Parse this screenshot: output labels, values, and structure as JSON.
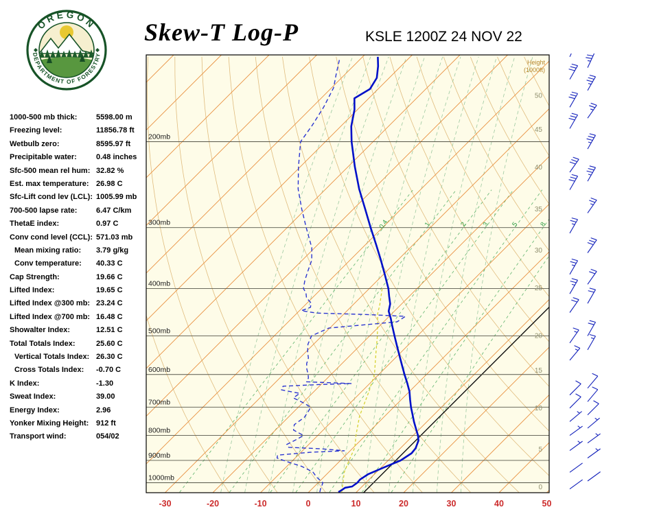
{
  "header": {
    "title": "Skew-T Log-P",
    "station_line": "KSLE 1200Z 24 NOV 22"
  },
  "logo": {
    "text_top": "OREGON",
    "text_bottom": "DEPARTMENT OF FORESTRY"
  },
  "stats": {
    "rows": [
      {
        "label": "1000-500 mb thick:",
        "value": "5598.00 m",
        "indent": false
      },
      {
        "label": "Freezing level:",
        "value": "11856.78 ft",
        "indent": false
      },
      {
        "label": "Wetbulb zero:",
        "value": "8595.97 ft",
        "indent": false
      },
      {
        "label": "Precipitable water:",
        "value": "0.48 inches",
        "indent": false
      },
      {
        "label": "Sfc-500 mean rel hum:",
        "value": "32.82 %",
        "indent": false
      },
      {
        "label": "Est. max temperature:",
        "value": "26.98 C",
        "indent": false
      },
      {
        "label": "Sfc-Lift cond lev (LCL):",
        "value": "1005.99 mb",
        "indent": false
      },
      {
        "label": "700-500 lapse rate:",
        "value": "6.47 C/km",
        "indent": false
      },
      {
        "label": "ThetaE index:",
        "value": "0.97 C",
        "indent": false
      },
      {
        "label": "Conv cond level (CCL):",
        "value": "571.03 mb",
        "indent": false
      },
      {
        "label": "Mean mixing ratio:",
        "value": "3.79 g/kg",
        "indent": true
      },
      {
        "label": "Conv temperature:",
        "value": "40.33 C",
        "indent": true
      },
      {
        "label": "Cap Strength:",
        "value": "19.66 C",
        "indent": false
      },
      {
        "label": "Lifted Index:",
        "value": "19.65 C",
        "indent": false
      },
      {
        "label": "Lifted Index @300 mb:",
        "value": "23.24 C",
        "indent": false
      },
      {
        "label": "Lifted Index @700 mb:",
        "value": "16.48 C",
        "indent": false
      },
      {
        "label": "Showalter Index:",
        "value": "12.51 C",
        "indent": false
      },
      {
        "label": "Total Totals Index:",
        "value": "25.60 C",
        "indent": false
      },
      {
        "label": "Vertical Totals Index:",
        "value": "26.30 C",
        "indent": true
      },
      {
        "label": "Cross Totals Index:",
        "value": "-0.70 C",
        "indent": true
      },
      {
        "label": "K Index:",
        "value": "-1.30",
        "indent": false
      },
      {
        "label": "Sweat Index:",
        "value": "39.00",
        "indent": false
      },
      {
        "label": "Energy Index:",
        "value": "2.96",
        "indent": false
      },
      {
        "label": "Yonker Mixing Height:",
        "value": "912 ft",
        "indent": false
      },
      {
        "label": "Transport wind:",
        "value": "054/02",
        "indent": false
      }
    ]
  },
  "chart_data": {
    "type": "skewt",
    "title": "Skew-T Log-P",
    "station": "KSLE 1200Z 24 NOV 22",
    "pressure_labels_mb": [
      200,
      300,
      400,
      500,
      600,
      700,
      800,
      900,
      1000
    ],
    "pressure_label_suffix": "mb",
    "temp_ticks_c": [
      -30,
      -20,
      -10,
      0,
      10,
      20,
      30,
      40,
      50
    ],
    "height_axis_title": "Height (1000ft)",
    "height_labels": [
      {
        "kft": "0",
        "mb": 1021
      },
      {
        "kft": "5",
        "mb": 854
      },
      {
        "kft": "10",
        "mb": 704
      },
      {
        "kft": "15",
        "mb": 589
      },
      {
        "kft": "20",
        "mb": 500
      },
      {
        "kft": "25",
        "mb": 399
      },
      {
        "kft": "30",
        "mb": 334
      },
      {
        "kft": "35",
        "mb": 275
      },
      {
        "kft": "40",
        "mb": 226
      },
      {
        "kft": "45",
        "mb": 189
      },
      {
        "kft": "50",
        "mb": 161
      }
    ],
    "mixing_ratio_lines_gkg": [
      0.4,
      1,
      2,
      3,
      5,
      8,
      12
    ],
    "mixing_ratio_labeled": [
      "0.4",
      "1",
      "2",
      "3",
      "5",
      "8"
    ],
    "isotherm_step_c": 10,
    "highlight_isotherm_c": 11.6,
    "temperature_profile": [
      [
        1045,
        6.2
      ],
      [
        1034,
        6.5
      ],
      [
        1024,
        6.7
      ],
      [
        1018,
        7.9
      ],
      [
        1000,
        8.2
      ],
      [
        985,
        8.1
      ],
      [
        960,
        8.7
      ],
      [
        930,
        10.6
      ],
      [
        900,
        12.6
      ],
      [
        870,
        13.4
      ],
      [
        850,
        13.2
      ],
      [
        820,
        12.2
      ],
      [
        800,
        11.0
      ],
      [
        770,
        8.8
      ],
      [
        750,
        7.3
      ],
      [
        725,
        5.5
      ],
      [
        700,
        3.6
      ],
      [
        675,
        1.8
      ],
      [
        650,
        0.0
      ],
      [
        625,
        -2.2
      ],
      [
        600,
        -4.6
      ],
      [
        575,
        -7.0
      ],
      [
        550,
        -9.5
      ],
      [
        525,
        -12.1
      ],
      [
        500,
        -14.8
      ],
      [
        475,
        -17.6
      ],
      [
        460,
        -19.3
      ],
      [
        445,
        -21.2
      ],
      [
        430,
        -22.4
      ],
      [
        415,
        -24.2
      ],
      [
        400,
        -26.0
      ],
      [
        375,
        -29.6
      ],
      [
        350,
        -33.5
      ],
      [
        325,
        -37.8
      ],
      [
        300,
        -42.5
      ],
      [
        275,
        -47.5
      ],
      [
        250,
        -53.0
      ],
      [
        225,
        -58.6
      ],
      [
        200,
        -64.5
      ],
      [
        186,
        -67.8
      ],
      [
        172,
        -70.6
      ],
      [
        163,
        -73.0
      ],
      [
        156,
        -71.7
      ],
      [
        148,
        -72.6
      ],
      [
        140,
        -74.8
      ],
      [
        134,
        -76.8
      ]
    ],
    "dewpoint_profile": [
      [
        1045,
        2.3
      ],
      [
        1030,
        1.8
      ],
      [
        1000,
        1.0
      ],
      [
        975,
        -1.4
      ],
      [
        950,
        -3.4
      ],
      [
        925,
        -7.0
      ],
      [
        905,
        -11.0
      ],
      [
        890,
        -13.8
      ],
      [
        878,
        -14.3
      ],
      [
        866,
        -8.0
      ],
      [
        860,
        -1.2
      ],
      [
        852,
        -6.5
      ],
      [
        846,
        -13.6
      ],
      [
        835,
        -14.6
      ],
      [
        815,
        -13.6
      ],
      [
        800,
        -13.0
      ],
      [
        780,
        -16.2
      ],
      [
        760,
        -17.2
      ],
      [
        735,
        -16.6
      ],
      [
        715,
        -17.0
      ],
      [
        700,
        -17.4
      ],
      [
        685,
        -20.0
      ],
      [
        670,
        -23.0
      ],
      [
        656,
        -22.6
      ],
      [
        645,
        -27.2
      ],
      [
        634,
        -27.6
      ],
      [
        629,
        -20.0
      ],
      [
        626,
        -13.9
      ],
      [
        621,
        -23.6
      ],
      [
        610,
        -24.0
      ],
      [
        600,
        -24.8
      ],
      [
        585,
        -26.2
      ],
      [
        570,
        -27.4
      ],
      [
        555,
        -28.2
      ],
      [
        540,
        -29.6
      ],
      [
        520,
        -31.2
      ],
      [
        500,
        -32.2
      ],
      [
        482,
        -30.2
      ],
      [
        468,
        -17.2
      ],
      [
        456,
        -16.6
      ],
      [
        452,
        -25.4
      ],
      [
        449,
        -36.0
      ],
      [
        444,
        -39.6
      ],
      [
        437,
        -38.4
      ],
      [
        428,
        -39.2
      ],
      [
        418,
        -41.2
      ],
      [
        408,
        -42.4
      ],
      [
        400,
        -43.8
      ],
      [
        385,
        -45.2
      ],
      [
        370,
        -46.4
      ],
      [
        350,
        -48.0
      ],
      [
        330,
        -50.6
      ],
      [
        300,
        -56.0
      ],
      [
        275,
        -60.8
      ],
      [
        250,
        -65.8
      ],
      [
        225,
        -70.4
      ],
      [
        200,
        -75.2
      ],
      [
        185,
        -76.2
      ],
      [
        170,
        -77.6
      ],
      [
        155,
        -79.6
      ],
      [
        145,
        -82.0
      ],
      [
        136,
        -84.2
      ]
    ],
    "parcel_profile": [
      [
        1045,
        6.9
      ],
      [
        1000,
        5.2
      ],
      [
        950,
        3.2
      ],
      [
        900,
        1.8
      ],
      [
        847,
        0.3
      ],
      [
        800,
        -2.0
      ],
      [
        730,
        -5.3
      ],
      [
        650,
        -8.5
      ],
      [
        600,
        -10.9
      ],
      [
        550,
        -14.5
      ],
      [
        500,
        -18.4
      ],
      [
        450,
        -23.0
      ],
      [
        433,
        -24.3
      ],
      [
        400,
        -27.3
      ]
    ],
    "wind_barbs": [
      [
        134,
        30,
        25
      ],
      [
        141,
        35,
        25
      ],
      [
        149,
        30,
        30
      ],
      [
        157,
        35,
        30
      ],
      [
        170,
        30,
        30
      ],
      [
        179,
        25,
        35
      ],
      [
        188,
        30,
        30
      ],
      [
        207,
        35,
        30
      ],
      [
        231,
        30,
        35
      ],
      [
        241,
        35,
        30
      ],
      [
        251,
        30,
        30
      ],
      [
        280,
        25,
        35
      ],
      [
        308,
        25,
        30
      ],
      [
        338,
        30,
        35
      ],
      [
        374,
        25,
        30
      ],
      [
        392,
        20,
        35
      ],
      [
        410,
        25,
        30
      ],
      [
        429,
        20,
        30
      ],
      [
        448,
        20,
        35
      ],
      [
        500,
        20,
        30
      ],
      [
        517,
        15,
        35
      ],
      [
        534,
        15,
        30
      ],
      [
        561,
        15,
        40
      ],
      [
        640,
        10,
        40
      ],
      [
        661,
        10,
        45
      ],
      [
        682,
        10,
        40
      ],
      [
        703,
        10,
        45
      ],
      [
        726,
        10,
        45
      ],
      [
        749,
        5,
        50
      ],
      [
        773,
        5,
        50
      ],
      [
        800,
        5,
        54
      ],
      [
        829,
        5,
        54
      ],
      [
        859,
        4,
        54
      ],
      [
        890,
        3,
        54
      ],
      [
        952,
        2,
        54
      ],
      [
        992,
        2,
        54
      ],
      [
        1030,
        2,
        54
      ]
    ],
    "colors": {
      "background": "#fefce8",
      "isotherm": "#e89040",
      "dry_adiabat": "#e0bc7e",
      "moist_adiabat": "#9cc9a0",
      "mixing_ratio": "#5db36b",
      "mixing_ratio_label": "#2f9e45",
      "pressure_line": "#56564a",
      "pressure_label": "#1a1a1a",
      "temp_line": "#0010c8",
      "dewpoint_line": "#2a35d0",
      "parcel_line": "#d6d234",
      "barb": "#1220bb",
      "temp_tick": "#cc2a2a",
      "height_label": "#90906e",
      "height_title": "#b5862b",
      "highlight": "#101010",
      "frame": "#000000"
    }
  }
}
